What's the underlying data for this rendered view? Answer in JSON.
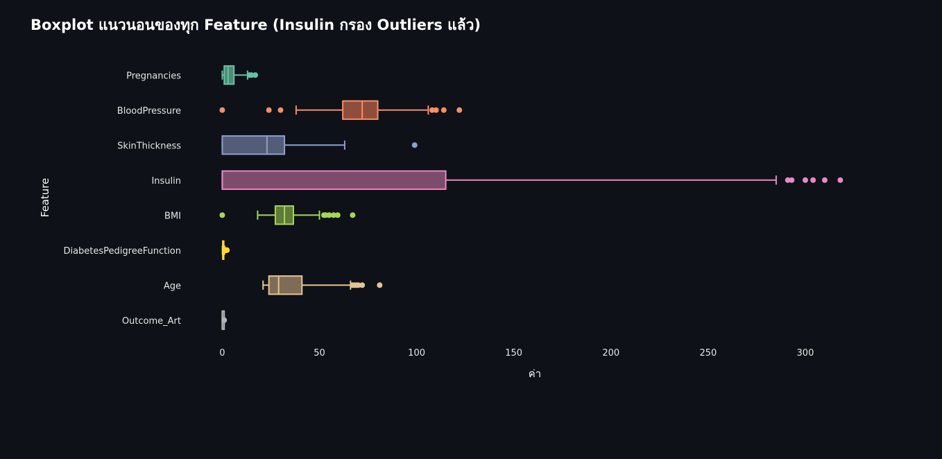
{
  "chart_data": {
    "type": "boxplot",
    "orientation": "horizontal",
    "title": "Boxplot แนวนอนของทุก Feature (Insulin กรอง Outliers แล้ว)",
    "xlabel": "ค่า",
    "ylabel": "Feature",
    "xlim": [
      -8,
      330
    ],
    "xticks": [
      0,
      50,
      100,
      150,
      200,
      250,
      300
    ],
    "grid": false,
    "legend": "none",
    "categories": [
      "Pregnancies",
      "BloodPressure",
      "SkinThickness",
      "Insulin",
      "BMI",
      "DiabetesPedigreeFunction",
      "Age",
      "Outcome_Art"
    ],
    "series": [
      {
        "name": "Pregnancies",
        "color": "#66c2a5",
        "fill": "#4d8b77",
        "whisker_low": 0,
        "q1": 1,
        "median": 3,
        "q3": 6,
        "whisker_high": 13,
        "outliers": [
          14,
          15,
          17
        ]
      },
      {
        "name": "BloodPressure",
        "color": "#fc8d62",
        "fill": "#8f4e3c",
        "whisker_low": 38,
        "q1": 62,
        "median": 72,
        "q3": 80,
        "whisker_high": 106,
        "outliers": [
          0,
          24,
          30,
          108,
          110,
          114,
          122
        ]
      },
      {
        "name": "SkinThickness",
        "color": "#8da0cb",
        "fill": "#535d77",
        "whisker_low": 0,
        "q1": 0,
        "median": 23,
        "q3": 32,
        "whisker_high": 63,
        "outliers": [
          99
        ]
      },
      {
        "name": "Insulin",
        "color": "#e78ac3",
        "fill": "#7d4c6d",
        "whisker_low": 0,
        "q1": 0,
        "median": 0,
        "q3": 115,
        "whisker_high": 285,
        "outliers": [
          291,
          293,
          300,
          304,
          310,
          318
        ]
      },
      {
        "name": "BMI",
        "color": "#a6d854",
        "fill": "#5f7b36",
        "whisker_low": 18.2,
        "q1": 27.3,
        "median": 32,
        "q3": 36.6,
        "whisker_high": 50,
        "outliers": [
          0,
          52.3,
          53.2,
          55,
          57.3,
          59.4,
          67.1
        ]
      },
      {
        "name": "DiabetesPedigreeFunction",
        "color": "#ffd92f",
        "fill": "#8a7a2b",
        "whisker_low": 0.08,
        "q1": 0.24,
        "median": 0.37,
        "q3": 0.63,
        "whisker_high": 1.2,
        "outliers": [
          1.3,
          1.5,
          1.7,
          1.9,
          2.1,
          2.3,
          2.42
        ]
      },
      {
        "name": "Age",
        "color": "#e5c494",
        "fill": "#7e6c54",
        "whisker_low": 21,
        "q1": 24,
        "median": 29,
        "q3": 41,
        "whisker_high": 66,
        "outliers": [
          67,
          68,
          69,
          70,
          72,
          81
        ]
      },
      {
        "name": "Outcome_Art",
        "color": "#b3b3b3",
        "fill": "#6b6b6b",
        "whisker_low": 0,
        "q1": 0,
        "median": 0,
        "q3": 1,
        "whisker_high": 1,
        "outliers": [
          1
        ]
      }
    ]
  }
}
